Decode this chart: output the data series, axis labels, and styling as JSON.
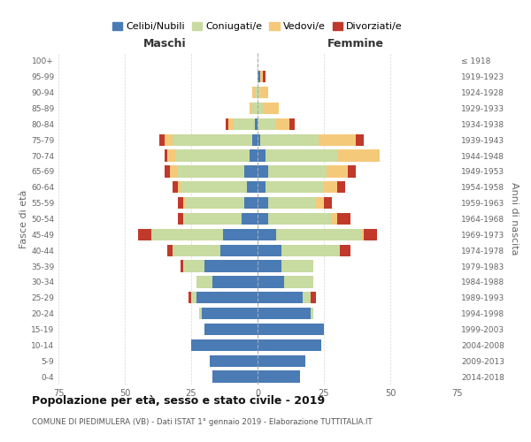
{
  "age_groups": [
    "0-4",
    "5-9",
    "10-14",
    "15-19",
    "20-24",
    "25-29",
    "30-34",
    "35-39",
    "40-44",
    "45-49",
    "50-54",
    "55-59",
    "60-64",
    "65-69",
    "70-74",
    "75-79",
    "80-84",
    "85-89",
    "90-94",
    "95-99",
    "100+"
  ],
  "birth_years": [
    "2014-2018",
    "2009-2013",
    "2004-2008",
    "1999-2003",
    "1994-1998",
    "1989-1993",
    "1984-1988",
    "1979-1983",
    "1974-1978",
    "1969-1973",
    "1964-1968",
    "1959-1963",
    "1954-1958",
    "1949-1953",
    "1944-1948",
    "1939-1943",
    "1934-1938",
    "1929-1933",
    "1924-1928",
    "1919-1923",
    "≤ 1918"
  ],
  "males": {
    "celibe": [
      17,
      18,
      25,
      20,
      21,
      23,
      17,
      20,
      14,
      13,
      6,
      5,
      4,
      5,
      3,
      2,
      1,
      0,
      0,
      0,
      0
    ],
    "coniugato": [
      0,
      0,
      0,
      0,
      1,
      2,
      6,
      8,
      18,
      27,
      22,
      22,
      25,
      25,
      28,
      30,
      8,
      2,
      1,
      0,
      0
    ],
    "vedovo": [
      0,
      0,
      0,
      0,
      0,
      0,
      0,
      0,
      0,
      0,
      0,
      1,
      1,
      3,
      3,
      3,
      2,
      1,
      1,
      0,
      0
    ],
    "divorziato": [
      0,
      0,
      0,
      0,
      0,
      1,
      0,
      1,
      2,
      5,
      2,
      2,
      2,
      2,
      1,
      2,
      1,
      0,
      0,
      0,
      0
    ]
  },
  "females": {
    "nubile": [
      16,
      18,
      24,
      25,
      20,
      17,
      10,
      9,
      9,
      7,
      4,
      4,
      3,
      4,
      3,
      1,
      0,
      0,
      0,
      1,
      0
    ],
    "coniugata": [
      0,
      0,
      0,
      0,
      1,
      3,
      11,
      12,
      22,
      32,
      24,
      18,
      22,
      22,
      27,
      22,
      7,
      2,
      1,
      0,
      0
    ],
    "vedova": [
      0,
      0,
      0,
      0,
      0,
      0,
      0,
      0,
      0,
      1,
      2,
      3,
      5,
      8,
      16,
      14,
      5,
      6,
      3,
      1,
      0
    ],
    "divorziata": [
      0,
      0,
      0,
      0,
      0,
      2,
      0,
      0,
      4,
      5,
      5,
      3,
      3,
      3,
      0,
      3,
      2,
      0,
      0,
      1,
      0
    ]
  },
  "colors": {
    "celibe": "#4a7bb5",
    "coniugato": "#c8dba0",
    "vedovo": "#f5c97a",
    "divorziato": "#c0392b"
  },
  "legend_labels": [
    "Celibi/Nubili",
    "Coniugati/e",
    "Vedovi/e",
    "Divorziati/e"
  ],
  "legend_colors": [
    "#4a7bb5",
    "#c8dba0",
    "#f5c97a",
    "#c0392b"
  ],
  "xlim": 75,
  "xlabel_left": "Maschi",
  "xlabel_right": "Femmine",
  "ylabel_left": "Fasce di età",
  "ylabel_right": "Anni di nascita",
  "title": "Popolazione per età, sesso e stato civile - 2019",
  "subtitle": "COMUNE DI PIEDIMULERA (VB) - Dati ISTAT 1° gennaio 2019 - Elaborazione TUTTITALIA.IT",
  "bg_color": "#ffffff",
  "grid_color": "#cccccc"
}
